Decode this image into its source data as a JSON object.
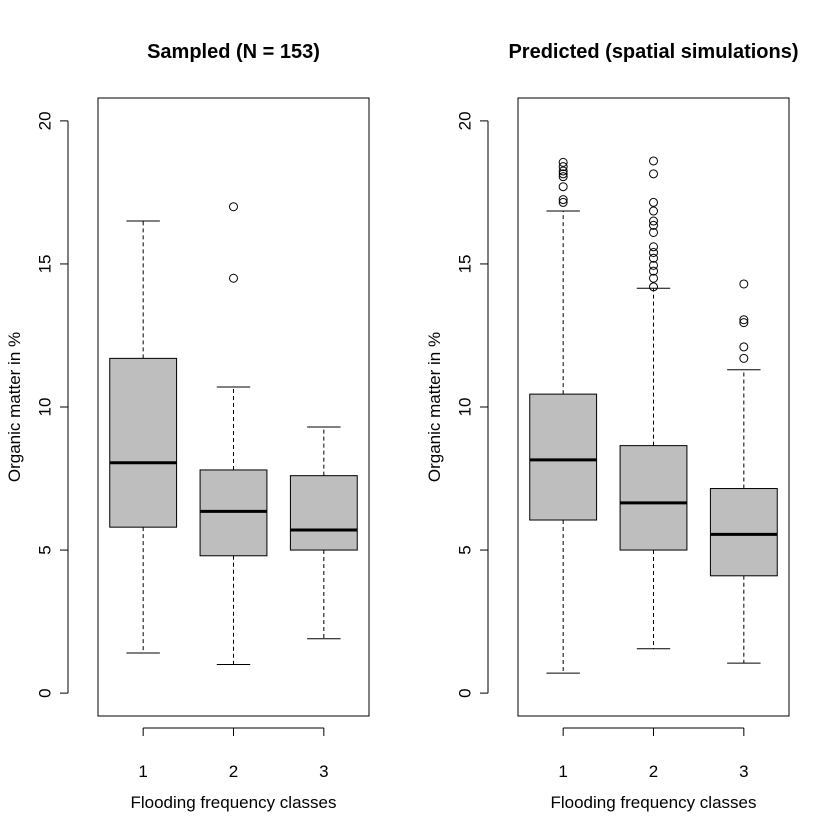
{
  "chart_data": [
    {
      "type": "boxplot",
      "title": "Sampled (N = 153)",
      "xlabel": "Flooding frequency classes",
      "ylabel": "Organic matter in %",
      "ylim": [
        -0.8,
        20.8
      ],
      "yticks": [
        0,
        5,
        10,
        15,
        20
      ],
      "categories": [
        "1",
        "2",
        "3"
      ],
      "boxes": [
        {
          "category": "1",
          "whisker_low": 1.4,
          "q1": 5.8,
          "median": 8.05,
          "q3": 11.7,
          "whisker_high": 16.5,
          "outliers": []
        },
        {
          "category": "2",
          "whisker_low": 1.0,
          "q1": 4.8,
          "median": 6.35,
          "q3": 7.8,
          "whisker_high": 10.7,
          "outliers": [
            14.5,
            17.0
          ]
        },
        {
          "category": "3",
          "whisker_low": 1.9,
          "q1": 5.0,
          "median": 5.7,
          "q3": 7.6,
          "whisker_high": 9.3,
          "outliers": []
        }
      ]
    },
    {
      "type": "boxplot",
      "title": "Predicted (spatial simulations)",
      "xlabel": "Flooding frequency classes",
      "ylabel": "Organic matter in %",
      "ylim": [
        -0.8,
        20.8
      ],
      "yticks": [
        0,
        5,
        10,
        15,
        20
      ],
      "categories": [
        "1",
        "2",
        "3"
      ],
      "boxes": [
        {
          "category": "1",
          "whisker_low": 0.7,
          "q1": 6.05,
          "median": 8.15,
          "q3": 10.45,
          "whisker_high": 16.85,
          "outliers": [
            17.15,
            17.25,
            17.7,
            18.05,
            18.15,
            18.25,
            18.4,
            18.55
          ]
        },
        {
          "category": "2",
          "whisker_low": 1.55,
          "q1": 5.0,
          "median": 6.65,
          "q3": 8.65,
          "whisker_high": 14.15,
          "outliers": [
            14.2,
            14.5,
            14.75,
            14.95,
            15.2,
            15.4,
            15.6,
            16.1,
            16.35,
            16.5,
            16.85,
            17.15,
            18.15,
            18.6
          ]
        },
        {
          "category": "3",
          "whisker_low": 1.05,
          "q1": 4.1,
          "median": 5.55,
          "q3": 7.15,
          "whisker_high": 11.3,
          "outliers": [
            11.7,
            12.1,
            12.95,
            13.05,
            14.3
          ]
        }
      ]
    }
  ],
  "colors": {
    "box_fill": "#bebebe",
    "stroke": "#000000"
  }
}
